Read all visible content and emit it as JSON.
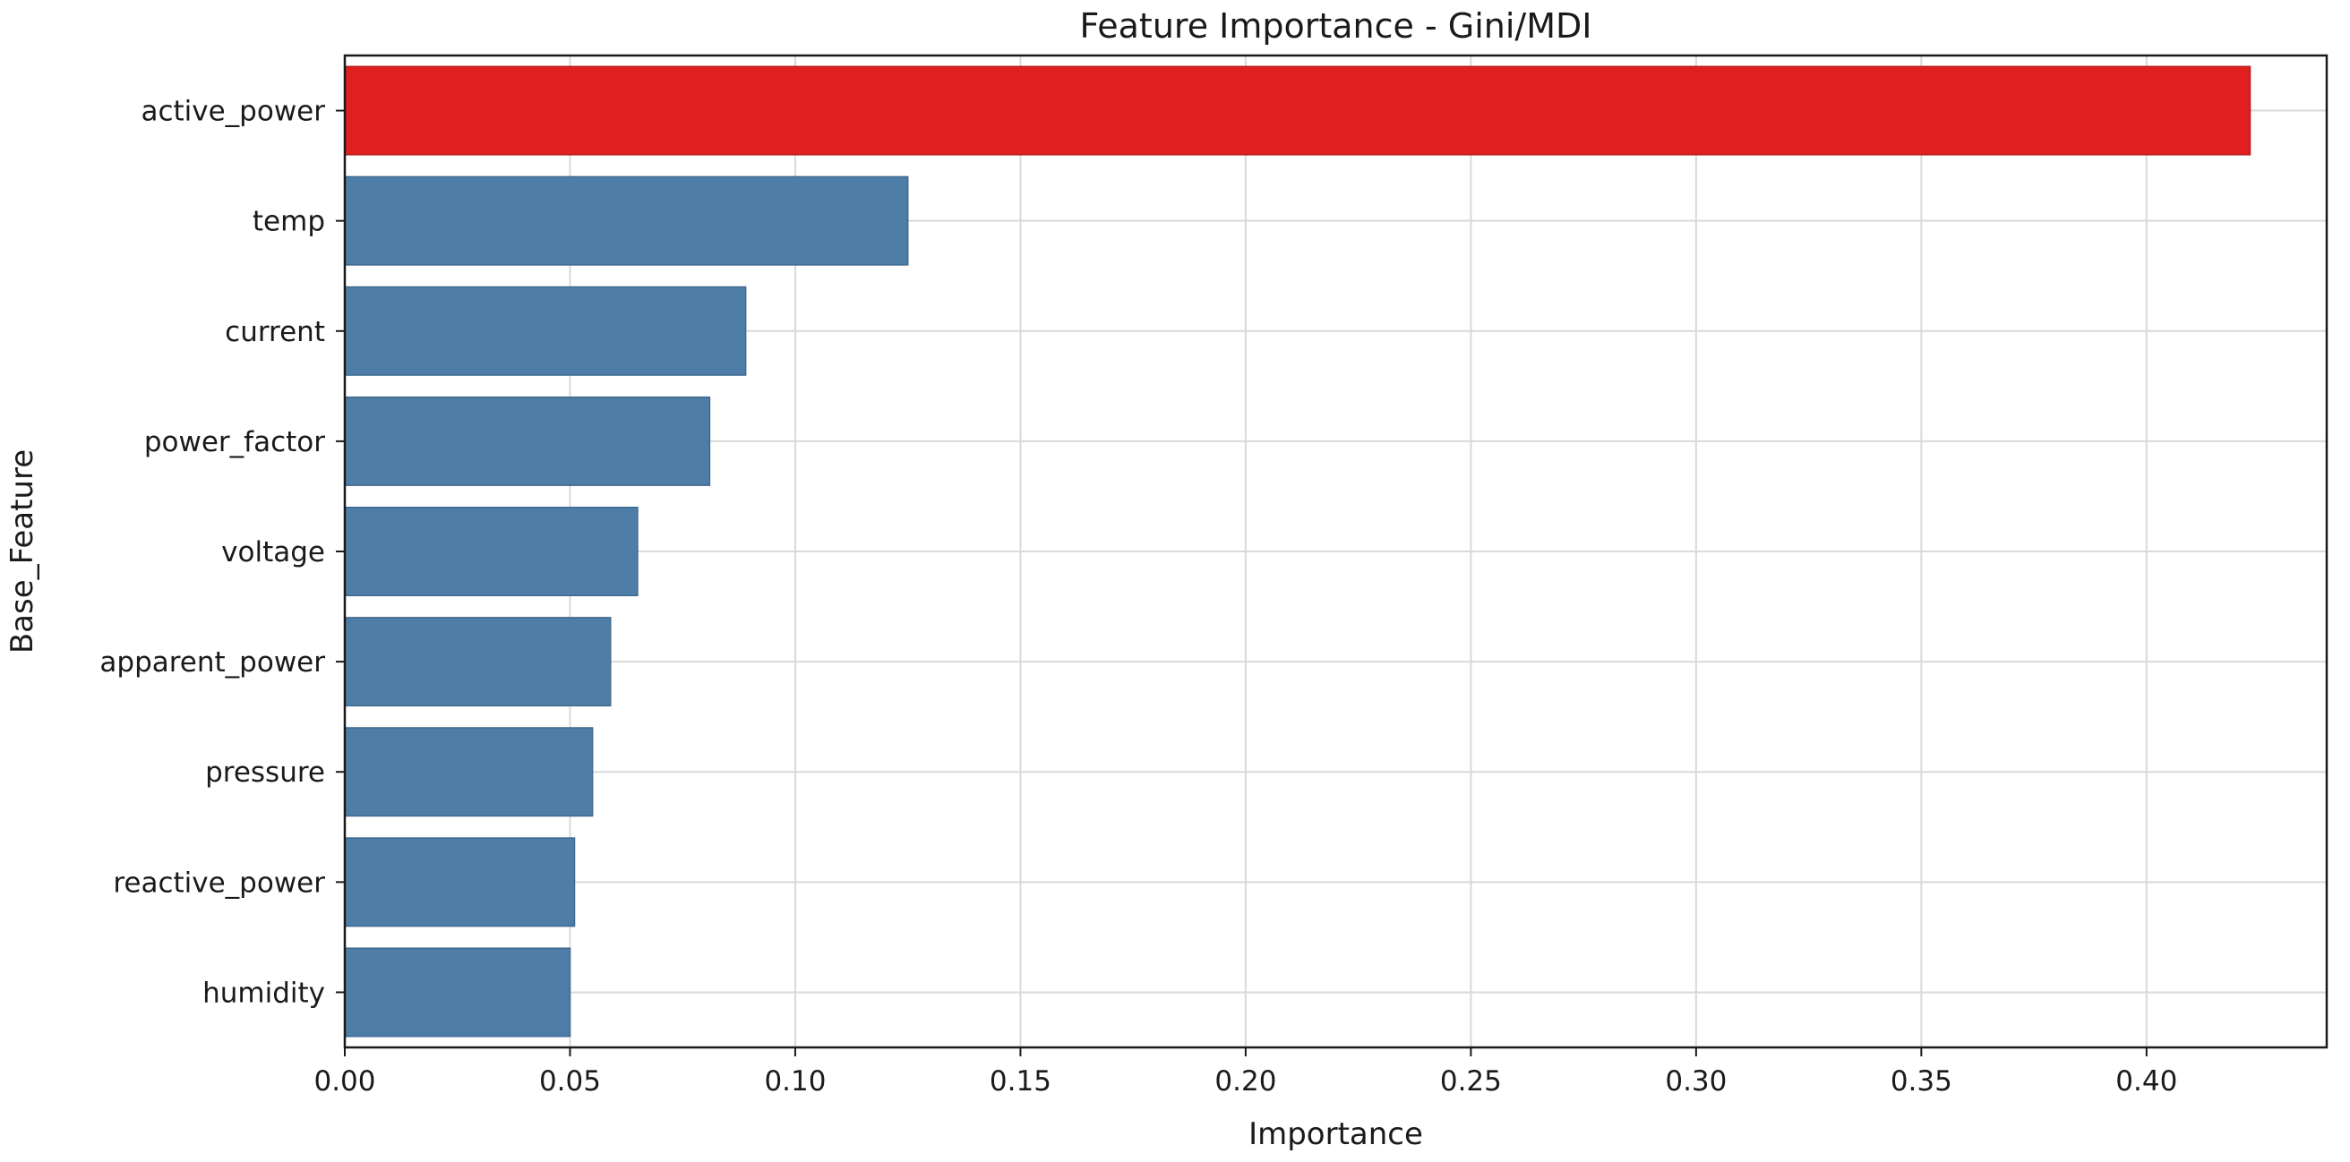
{
  "chart_data": {
    "type": "bar",
    "orientation": "horizontal",
    "title": "Feature Importance - Gini/MDI",
    "xlabel": "Importance",
    "ylabel": "Base_Feature",
    "xlim": [
      0,
      0.44
    ],
    "x_ticks": [
      0.0,
      0.05,
      0.1,
      0.15,
      0.2,
      0.25,
      0.3,
      0.35,
      0.4
    ],
    "x_tick_labels": [
      "0.00",
      "0.05",
      "0.10",
      "0.15",
      "0.20",
      "0.25",
      "0.30",
      "0.35",
      "0.40"
    ],
    "categories": [
      "active_power",
      "temp",
      "current",
      "power_factor",
      "voltage",
      "apparent_power",
      "pressure",
      "reactive_power",
      "humidity"
    ],
    "values": [
      0.423,
      0.125,
      0.089,
      0.081,
      0.065,
      0.059,
      0.055,
      0.051,
      0.05
    ],
    "highlight_index": 0,
    "colors": {
      "highlight": "#e02020",
      "default": "#4e7ea8",
      "highlight_edge": "#b51a1a",
      "default_edge": "#3f6a8f"
    },
    "grid": true
  }
}
